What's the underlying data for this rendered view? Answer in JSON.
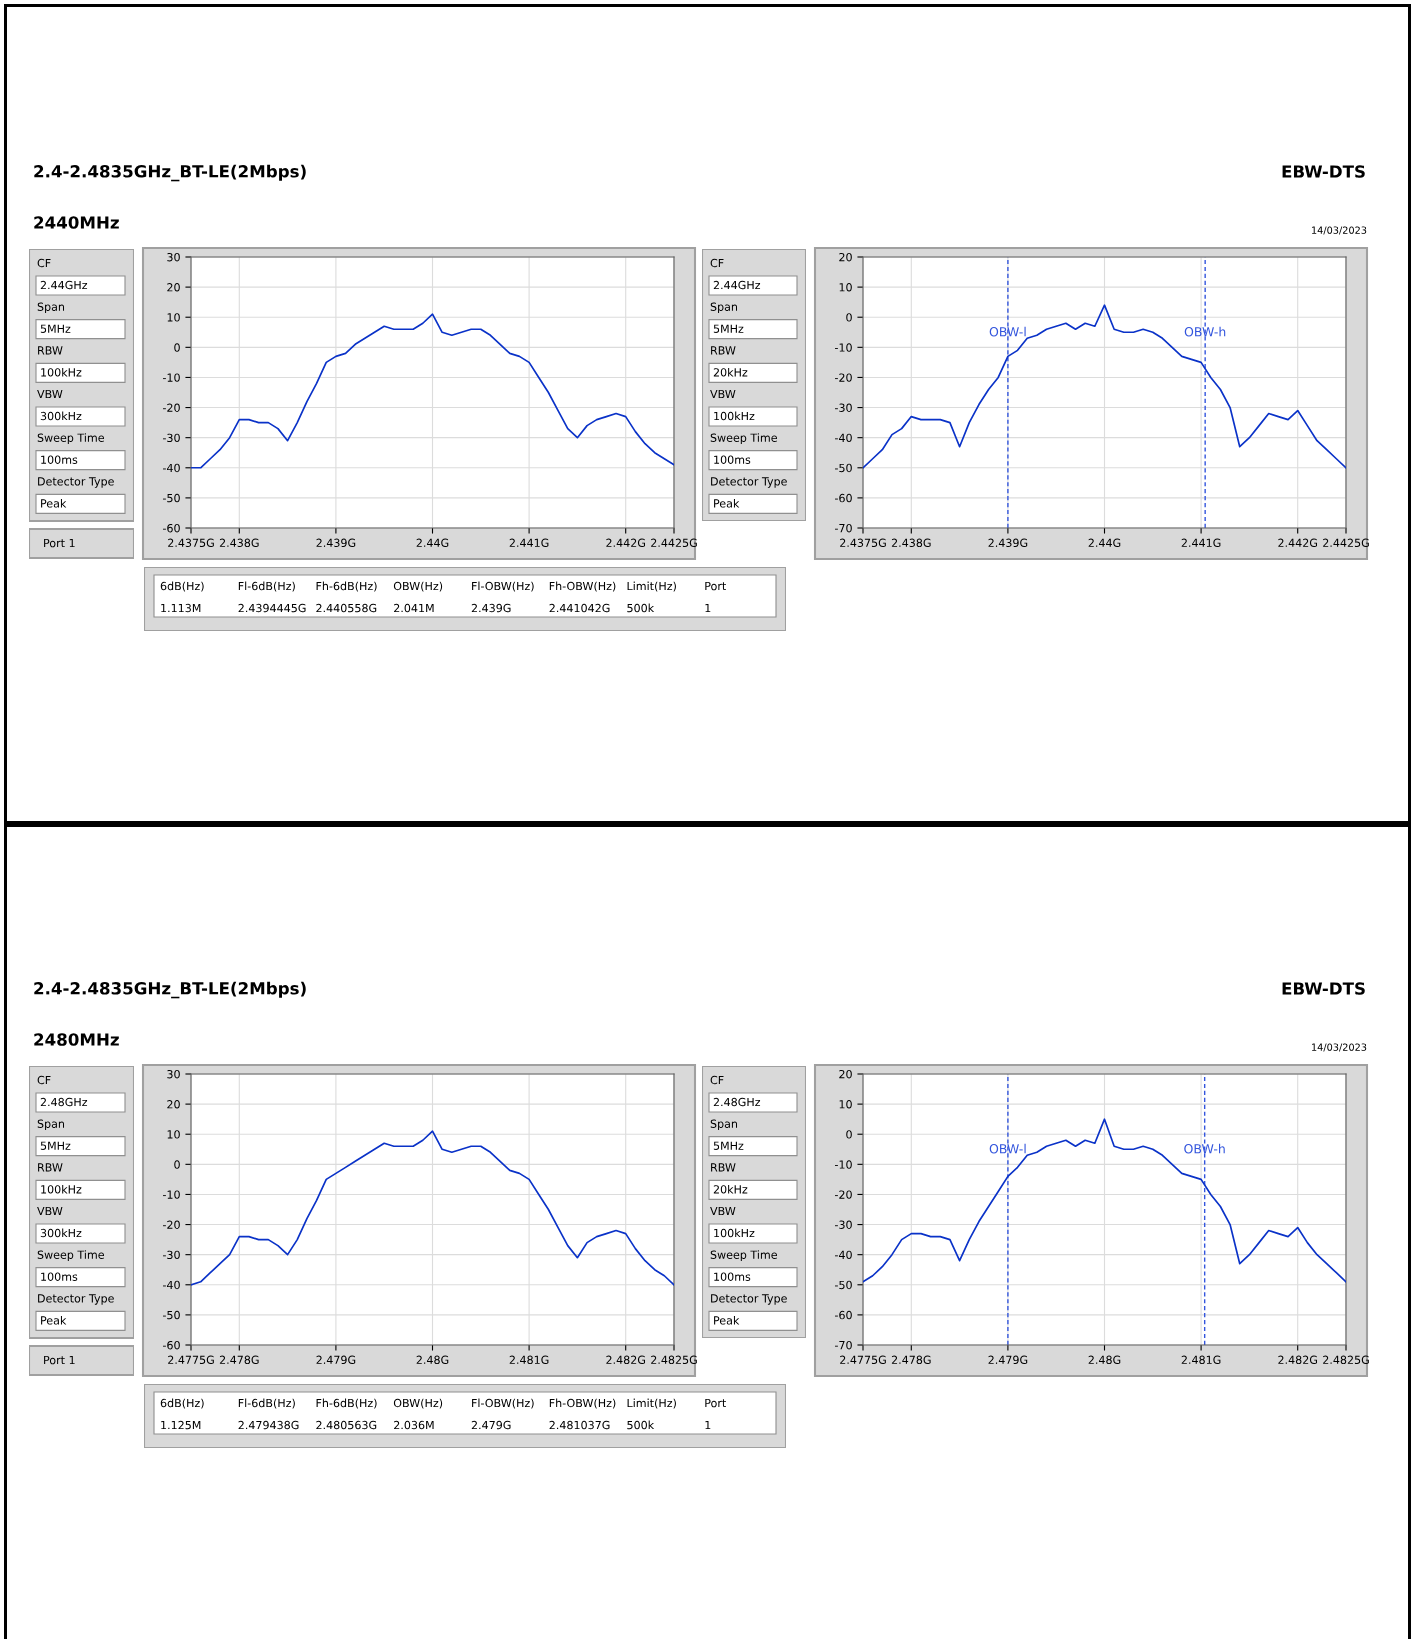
{
  "chart_data": [
    {
      "type": "other",
      "title": "2.4-2.4835GHz_BT-LE(2Mbps)",
      "subtitle": "2440MHz",
      "annotations": [
        "EBW-DTS",
        "14/03/2023"
      ]
    },
    {
      "type": "other",
      "annotations": [
        "CF",
        "2.44GHz",
        "Span",
        "5MHz",
        "RBW",
        "100kHz",
        "VBW",
        "300kHz",
        "Sweep Time",
        "100ms",
        "Detector Type",
        "Peak",
        "Port 1"
      ]
    },
    {
      "type": "line",
      "color": "#0a32c8",
      "grid": true,
      "x": [
        2.4375,
        2.4376,
        2.4377,
        2.4378,
        2.4379,
        2.438,
        2.4381,
        2.4382,
        2.4383,
        2.4384,
        2.4385,
        2.4386,
        2.4387,
        2.4388,
        2.4389,
        2.439,
        2.4391,
        2.4392,
        2.4393,
        2.4394,
        2.4395,
        2.4396,
        2.4397,
        2.4398,
        2.4399,
        2.44,
        2.4401,
        2.4402,
        2.4403,
        2.4404,
        2.4405,
        2.4406,
        2.4407,
        2.4408,
        2.4409,
        2.441,
        2.4411,
        2.4412,
        2.4413,
        2.4414,
        2.4415,
        2.4416,
        2.4417,
        2.4418,
        2.4419,
        2.442,
        2.4421,
        2.4422,
        2.4423,
        2.4424,
        2.4425
      ],
      "values": [
        -40,
        -40,
        -37,
        -34,
        -30,
        -24,
        -24,
        -25,
        -25,
        -27,
        -31,
        -25,
        -18,
        -12,
        -5,
        -3,
        -2,
        1,
        3,
        5,
        7,
        6,
        6,
        6,
        8,
        11,
        5,
        4,
        5,
        6,
        6,
        4,
        1,
        -2,
        -3,
        -5,
        -10,
        -15,
        -21,
        -27,
        -30,
        -26,
        -24,
        -23,
        -22,
        -23,
        -28,
        -32,
        -35,
        -37,
        -39
      ],
      "xlim": [
        2.4375,
        2.4425
      ],
      "xticks": [
        {
          "value": 2.4375,
          "label": "2.4375G"
        },
        {
          "value": 2.438,
          "label": "2.438G"
        },
        {
          "value": 2.439,
          "label": "2.439G"
        },
        {
          "value": 2.44,
          "label": "2.44G"
        },
        {
          "value": 2.441,
          "label": "2.441G"
        },
        {
          "value": 2.442,
          "label": "2.442G"
        },
        {
          "value": 2.4425,
          "label": "2.4425G"
        }
      ],
      "ylim": [
        -60,
        30
      ],
      "yticks": [
        -60,
        -50,
        -40,
        -30,
        -20,
        -10,
        0,
        10,
        20,
        30
      ]
    },
    {
      "type": "other",
      "annotations": [
        "CF",
        "2.44GHz",
        "Span",
        "5MHz",
        "RBW",
        "20kHz",
        "VBW",
        "100kHz",
        "Sweep Time",
        "100ms",
        "Detector Type",
        "Peak"
      ]
    },
    {
      "type": "line",
      "color": "#0a32c8",
      "grid": true,
      "x": [
        2.4375,
        2.4376,
        2.4377,
        2.4378,
        2.4379,
        2.438,
        2.4381,
        2.4382,
        2.4383,
        2.4384,
        2.4385,
        2.4386,
        2.4387,
        2.4388,
        2.4389,
        2.439,
        2.4391,
        2.4392,
        2.4393,
        2.4394,
        2.4395,
        2.4396,
        2.4397,
        2.4398,
        2.4399,
        2.44,
        2.4401,
        2.4402,
        2.4403,
        2.4404,
        2.4405,
        2.4406,
        2.4407,
        2.4408,
        2.4409,
        2.441,
        2.4411,
        2.4412,
        2.4413,
        2.4414,
        2.4415,
        2.4416,
        2.4417,
        2.4418,
        2.4419,
        2.442,
        2.4421,
        2.4422,
        2.4423,
        2.4424,
        2.4425
      ],
      "values": [
        -50,
        -47,
        -44,
        -39,
        -37,
        -33,
        -34,
        -34,
        -34,
        -35,
        -43,
        -35,
        -29,
        -24,
        -20,
        -13,
        -11,
        -7,
        -6,
        -4,
        -3,
        -2,
        -4,
        -2,
        -3,
        4,
        -4,
        -5,
        -5,
        -4,
        -5,
        -7,
        -10,
        -13,
        -14,
        -15,
        -20,
        -24,
        -30,
        -43,
        -40,
        -36,
        -32,
        -33,
        -34,
        -31,
        -36,
        -41,
        -44,
        -47,
        -50
      ],
      "xlim": [
        2.4375,
        2.4425
      ],
      "xticks": [
        {
          "value": 2.4375,
          "label": "2.4375G"
        },
        {
          "value": 2.438,
          "label": "2.438G"
        },
        {
          "value": 2.439,
          "label": "2.439G"
        },
        {
          "value": 2.44,
          "label": "2.44G"
        },
        {
          "value": 2.441,
          "label": "2.441G"
        },
        {
          "value": 2.442,
          "label": "2.442G"
        },
        {
          "value": 2.4425,
          "label": "2.4425G"
        }
      ],
      "ylim": [
        -70,
        20
      ],
      "yticks": [
        -70,
        -60,
        -50,
        -40,
        -30,
        -20,
        -10,
        0,
        10,
        20
      ],
      "ref_lines": [
        {
          "axis": "x",
          "value": 2.439,
          "label": "OBW-l",
          "color": "#3355dd",
          "line_style": "dashed"
        },
        {
          "axis": "x",
          "value": 2.441042,
          "label": "OBW-h",
          "color": "#3355dd",
          "line_style": "dashed"
        }
      ]
    },
    {
      "type": "other",
      "annotations": [
        "6dB(Hz)",
        "Fl-6dB(Hz)",
        "Fh-6dB(Hz)",
        "OBW(Hz)",
        "Fl-OBW(Hz)",
        "Fh-OBW(Hz)",
        "Limit(Hz)",
        "Port",
        "1.113M",
        "2.4394445G",
        "2.440558G",
        "2.041M",
        "2.439G",
        "2.441042G",
        "500k",
        "1"
      ]
    },
    {
      "type": "other",
      "title": "2.4-2.4835GHz_BT-LE(2Mbps)",
      "subtitle": "2480MHz",
      "annotations": [
        "EBW-DTS",
        "14/03/2023"
      ]
    },
    {
      "type": "other",
      "annotations": [
        "CF",
        "2.48GHz",
        "Span",
        "5MHz",
        "RBW",
        "100kHz",
        "VBW",
        "300kHz",
        "Sweep Time",
        "100ms",
        "Detector Type",
        "Peak",
        "Port 1"
      ]
    },
    {
      "type": "line",
      "color": "#0a32c8",
      "grid": true,
      "x": [
        2.4775,
        2.4776,
        2.4777,
        2.4778,
        2.4779,
        2.478,
        2.4781,
        2.4782,
        2.4783,
        2.4784,
        2.4785,
        2.4786,
        2.4787,
        2.4788,
        2.4789,
        2.479,
        2.4791,
        2.4792,
        2.4793,
        2.4794,
        2.4795,
        2.4796,
        2.4797,
        2.4798,
        2.4799,
        2.48,
        2.4801,
        2.4802,
        2.4803,
        2.4804,
        2.4805,
        2.4806,
        2.4807,
        2.4808,
        2.4809,
        2.481,
        2.4811,
        2.4812,
        2.4813,
        2.4814,
        2.4815,
        2.4816,
        2.4817,
        2.4818,
        2.4819,
        2.482,
        2.4821,
        2.4822,
        2.4823,
        2.4824,
        2.4825
      ],
      "values": [
        -40,
        -39,
        -36,
        -33,
        -30,
        -24,
        -24,
        -25,
        -25,
        -27,
        -30,
        -25,
        -18,
        -12,
        -5,
        -3,
        -1,
        1,
        3,
        5,
        7,
        6,
        6,
        6,
        8,
        11,
        5,
        4,
        5,
        6,
        6,
        4,
        1,
        -2,
        -3,
        -5,
        -10,
        -15,
        -21,
        -27,
        -31,
        -26,
        -24,
        -23,
        -22,
        -23,
        -28,
        -32,
        -35,
        -37,
        -40
      ],
      "xlim": [
        2.4775,
        2.4825
      ],
      "xticks": [
        {
          "value": 2.4775,
          "label": "2.4775G"
        },
        {
          "value": 2.478,
          "label": "2.478G"
        },
        {
          "value": 2.479,
          "label": "2.479G"
        },
        {
          "value": 2.48,
          "label": "2.48G"
        },
        {
          "value": 2.481,
          "label": "2.481G"
        },
        {
          "value": 2.482,
          "label": "2.482G"
        },
        {
          "value": 2.4825,
          "label": "2.4825G"
        }
      ],
      "ylim": [
        -60,
        30
      ],
      "yticks": [
        -60,
        -50,
        -40,
        -30,
        -20,
        -10,
        0,
        10,
        20,
        30
      ]
    },
    {
      "type": "other",
      "annotations": [
        "CF",
        "2.48GHz",
        "Span",
        "5MHz",
        "RBW",
        "20kHz",
        "VBW",
        "100kHz",
        "Sweep Time",
        "100ms",
        "Detector Type",
        "Peak"
      ]
    },
    {
      "type": "line",
      "color": "#0a32c8",
      "grid": true,
      "x": [
        2.4775,
        2.4776,
        2.4777,
        2.4778,
        2.4779,
        2.478,
        2.4781,
        2.4782,
        2.4783,
        2.4784,
        2.4785,
        2.4786,
        2.4787,
        2.4788,
        2.4789,
        2.479,
        2.4791,
        2.4792,
        2.4793,
        2.4794,
        2.4795,
        2.4796,
        2.4797,
        2.4798,
        2.4799,
        2.48,
        2.4801,
        2.4802,
        2.4803,
        2.4804,
        2.4805,
        2.4806,
        2.4807,
        2.4808,
        2.4809,
        2.481,
        2.4811,
        2.4812,
        2.4813,
        2.4814,
        2.4815,
        2.4816,
        2.4817,
        2.4818,
        2.4819,
        2.482,
        2.4821,
        2.4822,
        2.4823,
        2.4824,
        2.4825
      ],
      "values": [
        -49,
        -47,
        -44,
        -40,
        -35,
        -33,
        -33,
        -34,
        -34,
        -35,
        -42,
        -35,
        -29,
        -24,
        -19,
        -14,
        -11,
        -7,
        -6,
        -4,
        -3,
        -2,
        -4,
        -2,
        -3,
        5,
        -4,
        -5,
        -5,
        -4,
        -5,
        -7,
        -10,
        -13,
        -14,
        -15,
        -20,
        -24,
        -30,
        -43,
        -40,
        -36,
        -32,
        -33,
        -34,
        -31,
        -36,
        -40,
        -43,
        -46,
        -49
      ],
      "xlim": [
        2.4775,
        2.4825
      ],
      "xticks": [
        {
          "value": 2.4775,
          "label": "2.4775G"
        },
        {
          "value": 2.478,
          "label": "2.478G"
        },
        {
          "value": 2.479,
          "label": "2.479G"
        },
        {
          "value": 2.48,
          "label": "2.48G"
        },
        {
          "value": 2.481,
          "label": "2.481G"
        },
        {
          "value": 2.482,
          "label": "2.482G"
        },
        {
          "value": 2.4825,
          "label": "2.4825G"
        }
      ],
      "ylim": [
        -70,
        20
      ],
      "yticks": [
        -70,
        -60,
        -50,
        -40,
        -30,
        -20,
        -10,
        0,
        10,
        20
      ],
      "ref_lines": [
        {
          "axis": "x",
          "value": 2.479,
          "label": "OBW-l",
          "color": "#3355dd",
          "line_style": "dashed"
        },
        {
          "axis": "x",
          "value": 2.481037,
          "label": "OBW-h",
          "color": "#3355dd",
          "line_style": "dashed"
        }
      ]
    },
    {
      "type": "other",
      "annotations": [
        "6dB(Hz)",
        "Fl-6dB(Hz)",
        "Fh-6dB(Hz)",
        "OBW(Hz)",
        "Fl-OBW(Hz)",
        "Fh-OBW(Hz)",
        "Limit(Hz)",
        "Port",
        "1.125M",
        "2.479438G",
        "2.480563G",
        "2.036M",
        "2.479G",
        "2.481037G",
        "500k",
        "1"
      ]
    }
  ]
}
